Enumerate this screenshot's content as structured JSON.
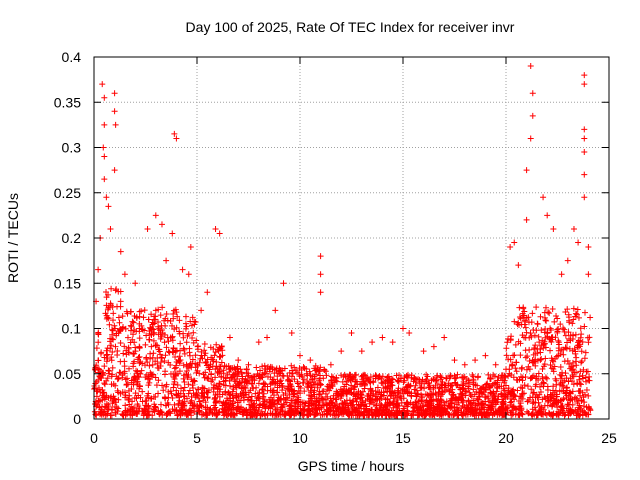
{
  "chart_data": {
    "type": "scatter",
    "title": "Day 100 of 2025, Rate Of TEC Index for receiver invr",
    "xlabel": "GPS time / hours",
    "ylabel": "ROTI / TECUs",
    "xlim": [
      0,
      25
    ],
    "ylim": [
      0,
      0.4
    ],
    "xticks": [
      0,
      5,
      10,
      15,
      20,
      25
    ],
    "xtick_labels": [
      "0",
      "5",
      "10",
      "15",
      "20",
      "25"
    ],
    "yticks": [
      0,
      0.05,
      0.1,
      0.15,
      0.2,
      0.25,
      0.3,
      0.35,
      0.4
    ],
    "ytick_labels": [
      "0",
      "0.05",
      "0.1",
      "0.15",
      "0.2",
      "0.25",
      "0.3",
      "0.35",
      "0.4"
    ],
    "grid": true,
    "marker": "plus",
    "color": "#ff0000",
    "series": [
      {
        "name": "ROTI",
        "points": [
          [
            0.4,
            0.37
          ],
          [
            0.5,
            0.355
          ],
          [
            0.5,
            0.325
          ],
          [
            0.45,
            0.3
          ],
          [
            0.5,
            0.29
          ],
          [
            0.6,
            0.245
          ],
          [
            0.7,
            0.235
          ],
          [
            0.5,
            0.265
          ],
          [
            1.0,
            0.36
          ],
          [
            1.0,
            0.34
          ],
          [
            1.05,
            0.325
          ],
          [
            1.0,
            0.275
          ],
          [
            0.3,
            0.2
          ],
          [
            0.2,
            0.165
          ],
          [
            0.1,
            0.13
          ],
          [
            0.8,
            0.21
          ],
          [
            1.3,
            0.185
          ],
          [
            1.5,
            0.16
          ],
          [
            2.0,
            0.15
          ],
          [
            2.6,
            0.21
          ],
          [
            3.0,
            0.225
          ],
          [
            3.3,
            0.215
          ],
          [
            3.5,
            0.175
          ],
          [
            3.9,
            0.315
          ],
          [
            4.0,
            0.31
          ],
          [
            3.8,
            0.205
          ],
          [
            4.3,
            0.165
          ],
          [
            4.6,
            0.16
          ],
          [
            4.7,
            0.19
          ],
          [
            5.2,
            0.12
          ],
          [
            5.5,
            0.14
          ],
          [
            5.9,
            0.21
          ],
          [
            6.1,
            0.205
          ],
          [
            6.6,
            0.09
          ],
          [
            7.0,
            0.065
          ],
          [
            7.5,
            0.06
          ],
          [
            8.0,
            0.085
          ],
          [
            8.4,
            0.09
          ],
          [
            8.8,
            0.12
          ],
          [
            9.2,
            0.15
          ],
          [
            9.6,
            0.095
          ],
          [
            10.0,
            0.07
          ],
          [
            10.5,
            0.065
          ],
          [
            11.0,
            0.18
          ],
          [
            11.0,
            0.16
          ],
          [
            11.0,
            0.14
          ],
          [
            11.5,
            0.06
          ],
          [
            12.0,
            0.075
          ],
          [
            12.5,
            0.095
          ],
          [
            13.0,
            0.075
          ],
          [
            13.5,
            0.085
          ],
          [
            14.0,
            0.09
          ],
          [
            14.5,
            0.085
          ],
          [
            15.0,
            0.1
          ],
          [
            15.3,
            0.095
          ],
          [
            16.0,
            0.075
          ],
          [
            16.5,
            0.08
          ],
          [
            17.0,
            0.09
          ],
          [
            17.5,
            0.065
          ],
          [
            18.0,
            0.06
          ],
          [
            18.5,
            0.065
          ],
          [
            19.0,
            0.07
          ],
          [
            19.5,
            0.06
          ],
          [
            20.0,
            0.055
          ],
          [
            20.2,
            0.19
          ],
          [
            20.4,
            0.195
          ],
          [
            20.6,
            0.17
          ],
          [
            21.0,
            0.22
          ],
          [
            21.2,
            0.39
          ],
          [
            21.3,
            0.36
          ],
          [
            21.3,
            0.335
          ],
          [
            21.2,
            0.31
          ],
          [
            21.0,
            0.275
          ],
          [
            21.8,
            0.245
          ],
          [
            22.0,
            0.225
          ],
          [
            22.3,
            0.21
          ],
          [
            22.7,
            0.16
          ],
          [
            23.0,
            0.175
          ],
          [
            23.3,
            0.21
          ],
          [
            23.5,
            0.195
          ],
          [
            23.8,
            0.38
          ],
          [
            23.8,
            0.37
          ],
          [
            23.8,
            0.32
          ],
          [
            23.8,
            0.31
          ],
          [
            23.8,
            0.295
          ],
          [
            23.8,
            0.27
          ],
          [
            23.8,
            0.245
          ],
          [
            24.0,
            0.19
          ],
          [
            24.0,
            0.16
          ]
        ]
      }
    ]
  }
}
